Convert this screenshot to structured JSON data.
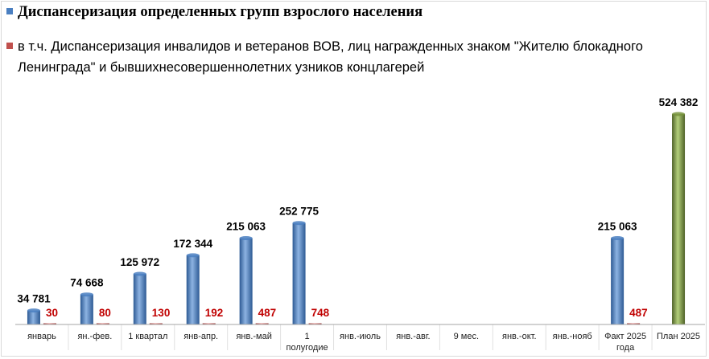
{
  "chart_data": {
    "type": "bar",
    "categories": [
      [
        "январь"
      ],
      [
        "ян.-фев."
      ],
      [
        "1 квартал"
      ],
      [
        "янв-апр."
      ],
      [
        "янв.-май"
      ],
      [
        "1",
        "полугодие"
      ],
      [
        "янв.-июль"
      ],
      [
        "янв.-авг."
      ],
      [
        "9 мес."
      ],
      [
        "янв.-окт."
      ],
      [
        "янв.-нояб"
      ],
      [
        "Факт 2025",
        "года"
      ],
      [
        "План 2025"
      ]
    ],
    "series": [
      {
        "name": "Диспансеризация определенных групп взрослого населения",
        "color": "#4a7fc1",
        "values": [
          34781,
          74668,
          125972,
          172344,
          215063,
          252775,
          null,
          null,
          null,
          null,
          null,
          215063,
          null
        ],
        "labels": [
          "34 781",
          "74 668",
          "125 972",
          "172 344",
          "215 063",
          "252 775",
          "",
          "",
          "",
          "",
          "",
          "215 063",
          ""
        ]
      },
      {
        "name": "в т.ч. Диспансеризация инвалидов и ветеранов ВОВ, лиц награжденных знаком \"Жителю блокадного Ленинграда\" и бывшихнесовершеннолетних  узников концлагерей",
        "color": "#c0504d",
        "label_color": "#c00000",
        "values": [
          30,
          80,
          130,
          192,
          487,
          748,
          null,
          null,
          null,
          null,
          null,
          487,
          null
        ],
        "labels": [
          "30",
          "80",
          "130",
          "192",
          "487",
          "748",
          "",
          "",
          "",
          "",
          "",
          "487",
          ""
        ]
      },
      {
        "name": "",
        "color": "#77933c",
        "values": [
          null,
          null,
          null,
          null,
          null,
          null,
          null,
          null,
          null,
          null,
          null,
          null,
          524382
        ],
        "labels": [
          "",
          "",
          "",
          "",
          "",
          "",
          "",
          "",
          "",
          "",
          "",
          "",
          "524 382"
        ]
      }
    ],
    "ylim": [
      0,
      524382
    ],
    "grid": false,
    "legend_position": "top-left"
  }
}
